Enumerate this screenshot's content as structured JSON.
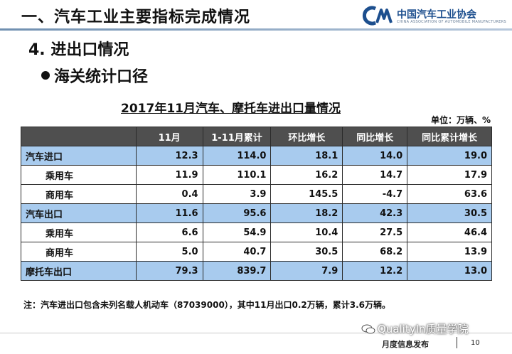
{
  "header": {
    "title": "一、汽车工业主要指标完成情况",
    "logo_text": "中国汽车工业协会",
    "logo_sub": "CHINA ASSOCIATION OF AUTOMOBILE MANUFACTURERS"
  },
  "section": {
    "title": "4. 进出口情况",
    "subtitle": "海关统计口径"
  },
  "table": {
    "title": "2017年11月汽车、摩托车进出口量情况",
    "unit": "单位：万辆、%",
    "columns": [
      "",
      "11月",
      "1-11月累计",
      "环比增长",
      "同比增长",
      "同比累计增长"
    ],
    "rows": [
      {
        "label": "汽车进口",
        "values": [
          "12.3",
          "114.0",
          "18.1",
          "14.0",
          "19.0"
        ]
      },
      {
        "label": "乘用车",
        "values": [
          "11.9",
          "110.1",
          "16.2",
          "14.7",
          "17.9"
        ]
      },
      {
        "label": "商用车",
        "values": [
          "0.4",
          "3.9",
          "145.5",
          "-4.7",
          "63.6"
        ]
      },
      {
        "label": "汽车出口",
        "values": [
          "11.6",
          "95.6",
          "18.2",
          "42.3",
          "30.5"
        ]
      },
      {
        "label": "乘用车",
        "values": [
          "6.6",
          "54.9",
          "10.4",
          "27.5",
          "46.4"
        ]
      },
      {
        "label": "商用车",
        "values": [
          "5.0",
          "40.7",
          "30.5",
          "68.2",
          "13.9"
        ]
      },
      {
        "label": "摩托车出口",
        "values": [
          "79.3",
          "839.7",
          "7.9",
          "12.2",
          "13.0"
        ]
      }
    ]
  },
  "note": "注：汽车进出口包含未列名载人机动车（87039000），其中11月出口0.2万辆，累计3.6万辆。",
  "watermark": "QualityIn质量学院",
  "footer": {
    "text": "月度信息发布",
    "page": "10"
  },
  "colors": {
    "header_row": "#4f4f4f",
    "category_row": "#a8cbee",
    "brand": "#1d4f8e"
  },
  "icons": [
    "logo-mark-icon",
    "bullet-icon",
    "wechat-icon"
  ]
}
